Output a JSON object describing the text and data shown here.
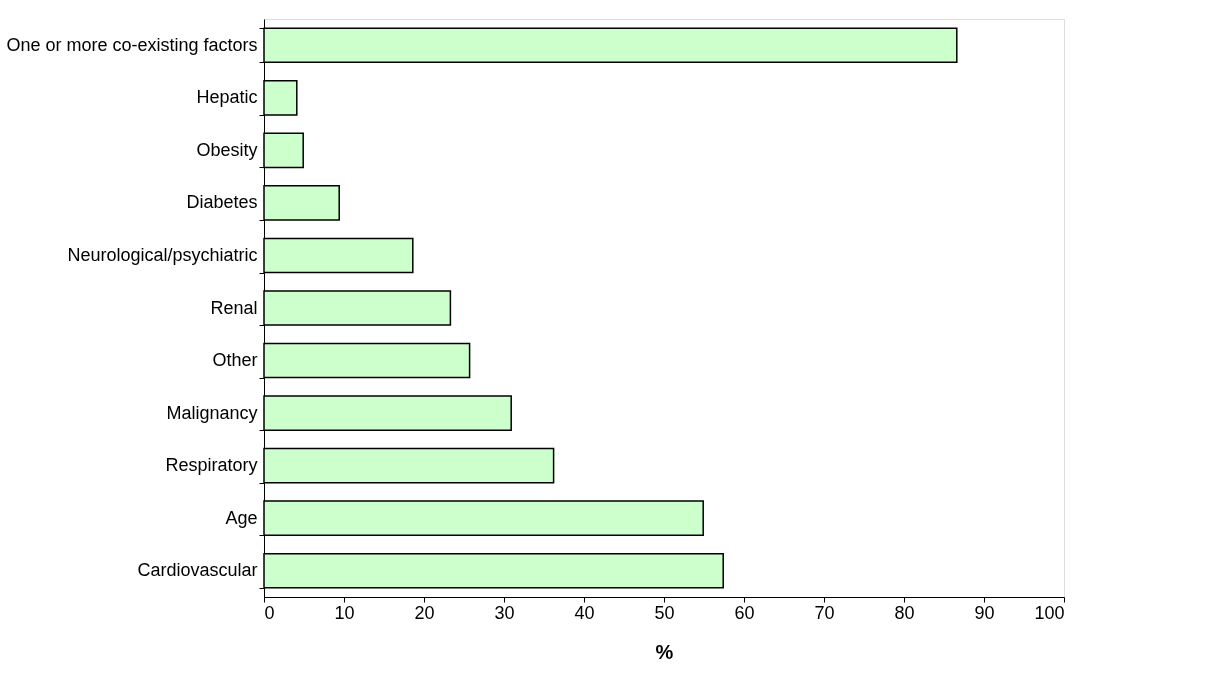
{
  "chart_data": {
    "type": "bar",
    "orientation": "horizontal",
    "xlabel": "%",
    "categories": [
      "One or more co-existing factors",
      "Hepatic",
      "Obesity",
      "Diabetes",
      "Neurological/psychiatric",
      "Renal",
      "Other",
      "Malignancy",
      "Respiratory",
      "Age",
      "Cardiovascular"
    ],
    "values": [
      86.6,
      4.1,
      4.9,
      9.4,
      18.6,
      23.3,
      25.7,
      30.9,
      36.2,
      54.9,
      57.4
    ],
    "color": "#ccffcc",
    "xlim": [
      0,
      100
    ],
    "xticks": [
      0,
      10,
      20,
      30,
      40,
      50,
      60,
      70,
      80,
      90,
      100
    ],
    "grid": false
  }
}
